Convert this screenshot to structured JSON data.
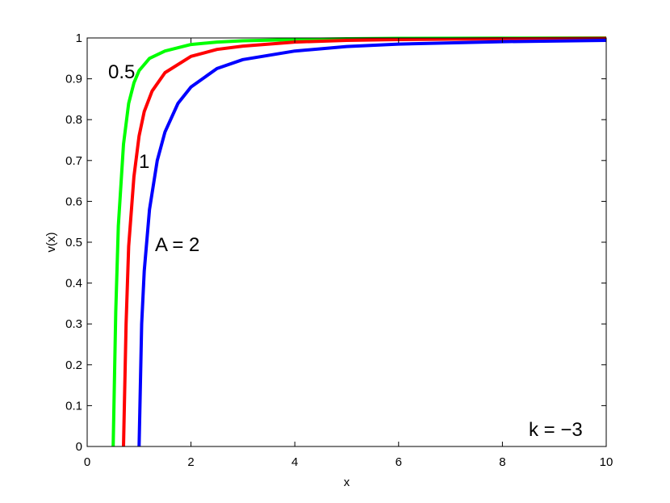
{
  "chart_data": {
    "type": "line",
    "title": "",
    "xlabel": "x",
    "ylabel": "v(x)",
    "xlim": [
      0,
      10
    ],
    "ylim": [
      0,
      1
    ],
    "grid": false,
    "xticks": [
      "0",
      "2",
      "4",
      "6",
      "8",
      "10"
    ],
    "yticks": [
      "0",
      "0.1",
      "0.2",
      "0.3",
      "0.4",
      "0.5",
      "0.6",
      "0.7",
      "0.8",
      "0.9",
      "1"
    ],
    "series": [
      {
        "color": "#00ff00",
        "x": [
          0.5,
          0.55,
          0.6,
          0.7,
          0.8,
          0.9,
          1.0,
          1.2,
          1.5,
          2.0,
          2.5,
          3,
          4,
          5,
          6,
          8,
          10
        ],
        "y": [
          0,
          0.33,
          0.54,
          0.74,
          0.84,
          0.89,
          0.92,
          0.95,
          0.968,
          0.984,
          0.99,
          0.993,
          0.996,
          0.998,
          0.999,
          0.9995,
          1.0
        ]
      },
      {
        "color": "#ff0000",
        "x": [
          0.7,
          0.75,
          0.8,
          0.9,
          1.0,
          1.1,
          1.25,
          1.5,
          2.0,
          2.5,
          3,
          4,
          5,
          6,
          8,
          10
        ],
        "y": [
          0,
          0.3,
          0.49,
          0.66,
          0.76,
          0.82,
          0.87,
          0.915,
          0.955,
          0.972,
          0.98,
          0.99,
          0.994,
          0.996,
          0.998,
          0.999
        ]
      },
      {
        "color": "#0000ff",
        "x": [
          1.0,
          1.05,
          1.1,
          1.2,
          1.35,
          1.5,
          1.75,
          2.0,
          2.5,
          3,
          4,
          5,
          6,
          8,
          10
        ],
        "y": [
          0,
          0.3,
          0.43,
          0.58,
          0.7,
          0.77,
          0.84,
          0.88,
          0.925,
          0.947,
          0.968,
          0.979,
          0.985,
          0.991,
          0.994
        ]
      }
    ],
    "annotations": [
      {
        "text": "0.5"
      },
      {
        "text": "1"
      },
      {
        "text": "A = 2"
      },
      {
        "text": "k = −3"
      }
    ]
  }
}
